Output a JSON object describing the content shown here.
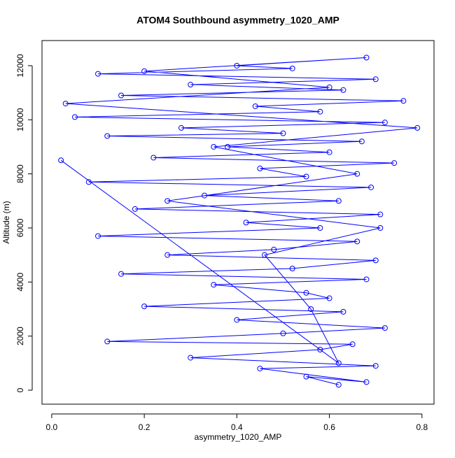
{
  "chart_data": {
    "type": "line",
    "title": "ATOM4 Southbound asymmetry_1020_AMP",
    "x_label": "asymmetry_1020_AMP",
    "y_label": "Altitude (m)",
    "color": "#0000ff",
    "x": [
      0.62,
      0.55,
      0.68,
      0.45,
      0.7,
      0.3,
      0.58,
      0.65,
      0.12,
      0.5,
      0.72,
      0.4,
      0.63,
      0.2,
      0.6,
      0.55,
      0.35,
      0.68,
      0.15,
      0.52,
      0.7,
      0.25,
      0.48,
      0.66,
      0.1,
      0.58,
      0.42,
      0.71,
      0.18,
      0.62,
      0.33,
      0.69,
      0.08,
      0.55,
      0.45,
      0.74,
      0.22,
      0.6,
      0.38,
      0.67,
      0.12,
      0.5,
      0.28,
      0.72,
      0.05,
      0.58,
      0.44,
      0.76,
      0.15,
      0.63,
      0.3,
      0.7,
      0.1,
      0.52,
      0.4,
      0.68,
      0.2,
      0.6,
      0.03,
      0.79,
      0.35,
      0.66,
      0.25,
      0.71,
      0.46,
      0.56,
      0.62,
      0.02
    ],
    "values": [
      200,
      500,
      300,
      800,
      900,
      1200,
      1500,
      1700,
      1800,
      2100,
      2300,
      2600,
      2900,
      3100,
      3400,
      3600,
      3900,
      4100,
      4300,
      4500,
      4800,
      5000,
      5200,
      5500,
      5700,
      6000,
      6200,
      6500,
      6700,
      7000,
      7200,
      7500,
      7700,
      7900,
      8200,
      8400,
      8600,
      8800,
      9000,
      9200,
      9400,
      9500,
      9700,
      9900,
      10100,
      10300,
      10500,
      10700,
      10900,
      11100,
      11300,
      11500,
      11700,
      11900,
      12000,
      12300,
      11800,
      11200,
      10600,
      9700,
      9000,
      8000,
      7000,
      6000,
      5000,
      3000,
      1000,
      8500
    ],
    "xlim": [
      -0.021,
      0.826
    ],
    "ylim": [
      -517,
      12930
    ],
    "xticks": [
      {
        "value": 0,
        "label": "0.0"
      },
      0.2,
      0.4,
      0.6,
      0.8
    ],
    "yticks": [
      0,
      2000,
      4000,
      6000,
      8000,
      10000,
      12000
    ]
  }
}
